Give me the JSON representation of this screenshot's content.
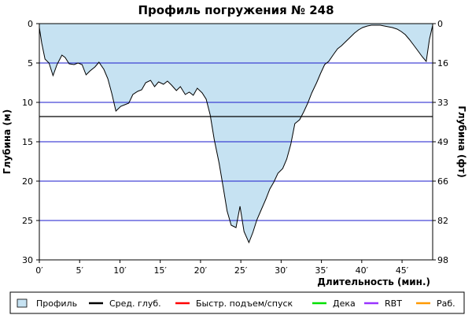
{
  "chart_data": {
    "type": "area",
    "title": "Профиль погружения № 248",
    "xlabel": "Длительность (мин.)",
    "ylabel_left": "Глубина (м)",
    "ylabel_right": "Глубина (фт)",
    "xlim": [
      0,
      48.8
    ],
    "ylim": [
      30,
      0
    ],
    "x_ticks": [
      0,
      5,
      10,
      15,
      20,
      25,
      30,
      35,
      40,
      45
    ],
    "x_tick_labels": [
      "0′",
      "5′",
      "10′",
      "15′",
      "20′",
      "25′",
      "30′",
      "35′",
      "40′",
      "45′"
    ],
    "y_ticks_left": [
      0,
      5,
      10,
      15,
      20,
      25,
      30
    ],
    "y_tick_labels_left": [
      "0",
      "5",
      "10",
      "15",
      "20",
      "25",
      "30"
    ],
    "y_tick_labels_right": [
      "0",
      "16",
      "33",
      "49",
      "66",
      "82",
      "98"
    ],
    "grid": true,
    "avg_depth": 11.8,
    "series": [
      {
        "name": "Профиль",
        "color": "#c6e2f2",
        "line_color": "#000000",
        "x": [
          0,
          0.3,
          0.7,
          1.2,
          1.7,
          2.2,
          2.8,
          3.2,
          3.7,
          4.3,
          4.8,
          5.3,
          5.8,
          6.3,
          6.9,
          7.4,
          8.0,
          8.5,
          9.0,
          9.5,
          10.1,
          10.6,
          11.1,
          11.6,
          12.2,
          12.7,
          13.2,
          13.8,
          14.3,
          14.8,
          15.4,
          15.9,
          16.4,
          17.0,
          17.5,
          18.1,
          18.6,
          19.1,
          19.6,
          20.2,
          20.7,
          21.2,
          21.7,
          22.3,
          22.8,
          23.3,
          23.8,
          24.4,
          24.9,
          25.4,
          26.0,
          26.5,
          27.0,
          27.5,
          28.1,
          28.6,
          29.1,
          29.6,
          30.2,
          30.7,
          31.2,
          31.7,
          32.3,
          32.8,
          33.3,
          33.8,
          34.4,
          34.9,
          35.4,
          35.9,
          36.5,
          37.0,
          37.5,
          38.0,
          38.6,
          39.1,
          39.6,
          40.1,
          40.7,
          41.2,
          41.7,
          42.3,
          42.8,
          43.3,
          43.8,
          44.4,
          44.9,
          45.4,
          45.9,
          46.5,
          47.0,
          47.5,
          48.0,
          48.4,
          48.8
        ],
        "y": [
          0.5,
          2.5,
          4.5,
          5.0,
          6.6,
          5.2,
          4.0,
          4.3,
          5.1,
          5.2,
          5.0,
          5.2,
          6.5,
          6.0,
          5.5,
          4.9,
          5.8,
          7.0,
          8.9,
          11.1,
          10.5,
          10.3,
          10.1,
          9.0,
          8.6,
          8.4,
          7.5,
          7.2,
          8.0,
          7.4,
          7.7,
          7.3,
          7.8,
          8.5,
          8.0,
          9.0,
          8.7,
          9.1,
          8.2,
          8.8,
          9.6,
          11.6,
          14.7,
          17.7,
          20.7,
          23.8,
          25.6,
          25.9,
          23.2,
          26.4,
          27.8,
          26.5,
          24.9,
          23.7,
          22.3,
          21.0,
          20.1,
          19.0,
          18.4,
          17.2,
          15.3,
          12.7,
          12.2,
          11.2,
          10.1,
          8.8,
          7.5,
          6.3,
          5.2,
          4.8,
          3.9,
          3.2,
          2.8,
          2.3,
          1.7,
          1.2,
          0.8,
          0.5,
          0.3,
          0.2,
          0.2,
          0.2,
          0.3,
          0.4,
          0.5,
          0.7,
          1.0,
          1.4,
          2.0,
          2.8,
          3.5,
          4.2,
          4.8,
          2.0,
          0.2
        ]
      },
      {
        "name": "Сред. глуб.",
        "color": "#000000"
      },
      {
        "name": "Быстр. подъем/спуск",
        "color": "#ff0000"
      },
      {
        "name": "Дека",
        "color": "#00e000"
      },
      {
        "name": "RBT",
        "color": "#9933ff"
      },
      {
        "name": "Раб.",
        "color": "#ff9900"
      }
    ],
    "legend_position": "bottom"
  }
}
